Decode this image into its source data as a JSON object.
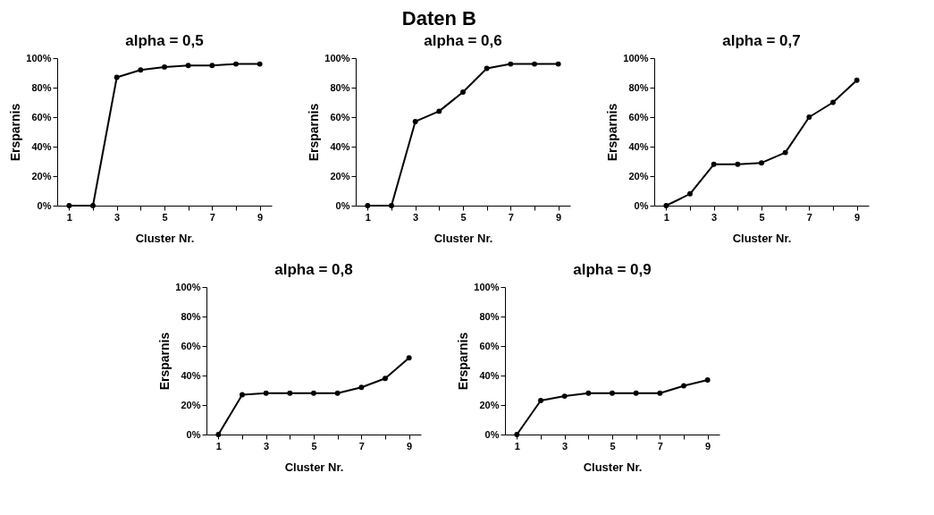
{
  "chart_data": [
    {
      "type": "other",
      "title": "Daten B"
    },
    {
      "type": "line",
      "title": "alpha = 0,5",
      "xlabel": "Cluster Nr.",
      "ylabel": "Ersparnis",
      "categories": [
        "1",
        null,
        "3",
        null,
        "5",
        null,
        "7",
        null,
        "9"
      ],
      "series": [
        {
          "color": "#000000",
          "values": [
            0,
            0,
            87,
            92,
            94,
            95,
            95,
            96,
            96
          ]
        }
      ],
      "ylim": [
        0,
        100
      ],
      "yticks": [
        {
          "value": 0,
          "label": "0%"
        },
        {
          "value": 20,
          "label": "20%"
        },
        {
          "value": 40,
          "label": "40%"
        },
        {
          "value": 60,
          "label": "60%"
        },
        {
          "value": 80,
          "label": "80%"
        },
        {
          "value": 100,
          "label": "100%"
        }
      ],
      "marker": "circle",
      "line_style": "solid",
      "grid": false
    },
    {
      "type": "line",
      "title": "alpha = 0,6",
      "xlabel": "Cluster Nr.",
      "ylabel": "Ersparnis",
      "categories": [
        "1",
        null,
        "3",
        null,
        "5",
        null,
        "7",
        null,
        "9"
      ],
      "series": [
        {
          "color": "#000000",
          "values": [
            0,
            0,
            57,
            64,
            77,
            93,
            96,
            96,
            96
          ]
        }
      ],
      "ylim": [
        0,
        100
      ],
      "yticks": [
        {
          "value": 0,
          "label": "0%"
        },
        {
          "value": 20,
          "label": "20%"
        },
        {
          "value": 40,
          "label": "40%"
        },
        {
          "value": 60,
          "label": "60%"
        },
        {
          "value": 80,
          "label": "80%"
        },
        {
          "value": 100,
          "label": "100%"
        }
      ],
      "marker": "circle",
      "line_style": "solid",
      "grid": false
    },
    {
      "type": "line",
      "title": "alpha = 0,7",
      "xlabel": "Cluster Nr.",
      "ylabel": "Ersparnis",
      "categories": [
        "1",
        null,
        "3",
        null,
        "5",
        null,
        "7",
        null,
        "9"
      ],
      "series": [
        {
          "color": "#000000",
          "values": [
            0,
            8,
            28,
            28,
            29,
            36,
            60,
            70,
            85
          ]
        }
      ],
      "ylim": [
        0,
        100
      ],
      "yticks": [
        {
          "value": 0,
          "label": "0%"
        },
        {
          "value": 20,
          "label": "20%"
        },
        {
          "value": 40,
          "label": "40%"
        },
        {
          "value": 60,
          "label": "60%"
        },
        {
          "value": 80,
          "label": "80%"
        },
        {
          "value": 100,
          "label": "100%"
        }
      ],
      "marker": "circle",
      "line_style": "solid",
      "grid": false
    },
    {
      "type": "line",
      "title": "alpha = 0,8",
      "xlabel": "Cluster Nr.",
      "ylabel": "Ersparnis",
      "categories": [
        "1",
        null,
        "3",
        null,
        "5",
        null,
        "7",
        null,
        "9"
      ],
      "series": [
        {
          "color": "#000000",
          "values": [
            0,
            27,
            28,
            28,
            28,
            28,
            32,
            38,
            52
          ]
        }
      ],
      "ylim": [
        0,
        100
      ],
      "yticks": [
        {
          "value": 0,
          "label": "0%"
        },
        {
          "value": 20,
          "label": "20%"
        },
        {
          "value": 40,
          "label": "40%"
        },
        {
          "value": 60,
          "label": "60%"
        },
        {
          "value": 80,
          "label": "80%"
        },
        {
          "value": 100,
          "label": "100%"
        }
      ],
      "marker": "circle",
      "line_style": "solid",
      "grid": false
    },
    {
      "type": "line",
      "title": "alpha = 0,9",
      "xlabel": "Cluster Nr.",
      "ylabel": "Ersparnis",
      "categories": [
        "1",
        null,
        "3",
        null,
        "5",
        null,
        "7",
        null,
        "9"
      ],
      "series": [
        {
          "color": "#000000",
          "values": [
            0,
            23,
            26,
            28,
            28,
            28,
            28,
            33,
            37
          ]
        }
      ],
      "ylim": [
        0,
        100
      ],
      "yticks": [
        {
          "value": 0,
          "label": "0%"
        },
        {
          "value": 20,
          "label": "20%"
        },
        {
          "value": 40,
          "label": "40%"
        },
        {
          "value": 60,
          "label": "60%"
        },
        {
          "value": 80,
          "label": "80%"
        },
        {
          "value": 100,
          "label": "100%"
        }
      ],
      "marker": "circle",
      "line_style": "solid",
      "grid": false
    }
  ]
}
